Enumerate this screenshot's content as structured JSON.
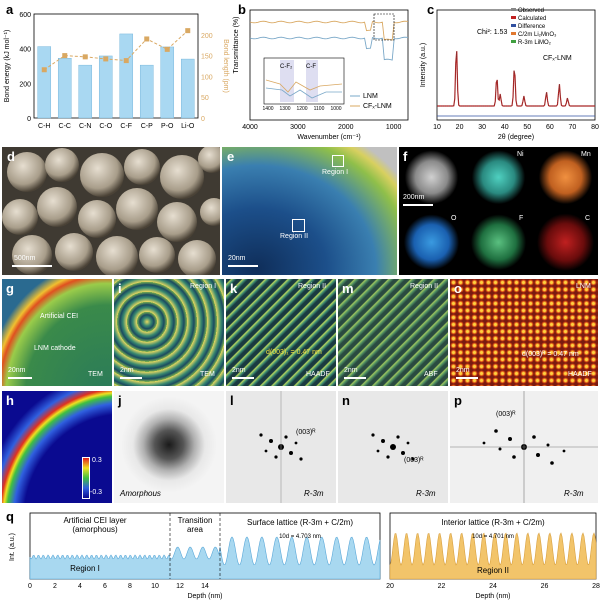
{
  "panel_labels": {
    "a": "a",
    "b": "b",
    "c": "c",
    "d": "d",
    "e": "e",
    "f": "f",
    "g": "g",
    "h": "h",
    "i": "i",
    "j": "j",
    "k": "k",
    "l": "l",
    "m": "m",
    "n": "n",
    "o": "o",
    "p": "p",
    "q": "q"
  },
  "panel_a": {
    "chart_data": {
      "type": "bar",
      "categories": [
        "C-H",
        "C-C",
        "C-N",
        "C-O",
        "C-F",
        "C-P",
        "P-O",
        "Li-O"
      ],
      "values": [
        412,
        345,
        305,
        358,
        485,
        305,
        410,
        340
      ],
      "line_values": [
        116,
        150,
        147,
        142,
        138,
        190,
        165,
        210
      ],
      "ylabel": "Bond energy (kJ mol⁻¹)",
      "ylabel2": "Bond length (pm)",
      "ylim": [
        0,
        600
      ],
      "ylim2": [
        0,
        250
      ],
      "yticks": [
        "0",
        "200",
        "400",
        "600"
      ],
      "yticks2": [
        "0",
        "50",
        "100",
        "150",
        "200"
      ],
      "bar_color": "#a9d8f2",
      "line_color": "#d9a862"
    }
  },
  "panel_b": {
    "chart_data": {
      "type": "line",
      "xlabel": "Wavenumber (cm⁻¹)",
      "ylabel": "Transmittance (%)",
      "xticks": [
        "4000",
        "3000",
        "2000",
        "1000"
      ],
      "series": [
        {
          "name": "LNM",
          "color": "#7aa8c8"
        },
        {
          "name": "CFₓ-LNM",
          "color": "#d9a862"
        }
      ],
      "inset_xticks": [
        "1400",
        "1300",
        "1200",
        "1100",
        "1000"
      ],
      "inset_labels": [
        "C-F₂",
        "C-F"
      ]
    }
  },
  "panel_c": {
    "chart_data": {
      "type": "scatter",
      "xlabel": "2θ (degree)",
      "ylabel": "Intensity (a.u.)",
      "xticks": [
        "10",
        "20",
        "30",
        "40",
        "50",
        "60",
        "70",
        "80"
      ],
      "legend": [
        "Observed",
        "Calculated",
        "Difference",
        "C/2m Li₂MnO₃",
        "R-3m LiMO₂"
      ],
      "chi": "Chi²: 1.53",
      "sample": "CFₓ-LNM"
    }
  },
  "panel_d": {
    "scale": "500nm"
  },
  "panel_e": {
    "scale": "20nm",
    "region1": "Region I",
    "region2": "Region II"
  },
  "panel_f": {
    "scale": "200nm",
    "maps": [
      "Ni",
      "Mn",
      "O",
      "F",
      "C"
    ]
  },
  "panel_g": {
    "cei": "Artificial CEI",
    "cathode": "LNM cathode",
    "scale": "20nm",
    "mode": "TEM"
  },
  "panel_h": {
    "cmax": "0.3",
    "cmin": "-0.3"
  },
  "panel_i": {
    "region": "Region I",
    "scale": "2nm",
    "mode": "TEM"
  },
  "panel_j": {
    "label": "Amorphous"
  },
  "panel_k": {
    "region": "Region II",
    "d": "d(003)₁ = 0.47 nm",
    "scale": "2nm",
    "mode": "HAADF"
  },
  "panel_l": {
    "spot": "(003)ᴿ",
    "group": "R-3m"
  },
  "panel_m": {
    "region": "Region II",
    "scale": "2nm",
    "mode": "ABF"
  },
  "panel_n": {
    "spot": "(003)ᴿ",
    "group": "R-3m"
  },
  "panel_o": {
    "region": "LNM",
    "d": "d(003)ᴿ = 0.47 nm",
    "scale": "2nm",
    "mode": "HAADF"
  },
  "panel_p": {
    "spot": "(003)ᴿ",
    "group": "R-3m"
  },
  "panel_q": {
    "ylabel": "Int. (a.u.)",
    "xlabel": "Depth (nm)",
    "left_xticks": [
      "0",
      "2",
      "4",
      "6",
      "8",
      "10",
      "12",
      "14"
    ],
    "right_xticks": [
      "20",
      "22",
      "24",
      "26",
      "28"
    ],
    "cei": "Artificial CEI layer",
    "cei2": "(amorphous)",
    "transition": "Transition",
    "transition2": "area",
    "surface": "Surface lattice (R-3m + C/2m)",
    "interior": "Interior lattice (R-3m + C/2m)",
    "d1": "10d = 4.703 nm",
    "d2": "10d = 4.701 nm",
    "region1": "Region I",
    "region2": "Region II",
    "left_color": "#a8d8f0",
    "right_color": "#f2c46a"
  }
}
